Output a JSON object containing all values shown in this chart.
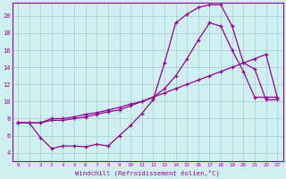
{
  "xlabel": "Windchill (Refroidissement éolien,°C)",
  "line_color": "#990099",
  "bg_color": "#cff0f0",
  "grid_color": "#aad4d4",
  "xlim": [
    -0.5,
    23.5
  ],
  "ylim": [
    3.0,
    21.5
  ],
  "xticks": [
    0,
    1,
    2,
    3,
    4,
    5,
    6,
    7,
    8,
    9,
    10,
    11,
    12,
    13,
    14,
    15,
    16,
    17,
    18,
    19,
    20,
    21,
    22,
    23
  ],
  "yticks": [
    4,
    6,
    8,
    10,
    12,
    14,
    16,
    18,
    20
  ],
  "line1_x": [
    0,
    1,
    2,
    3,
    4,
    5,
    6,
    7,
    8,
    9,
    10,
    11,
    12,
    13,
    14,
    15,
    16,
    17,
    18,
    19,
    20,
    21,
    22,
    23
  ],
  "line1_y": [
    7.5,
    7.5,
    5.8,
    4.5,
    4.8,
    4.8,
    4.7,
    5.0,
    4.8,
    6.0,
    7.2,
    8.6,
    10.2,
    14.5,
    19.2,
    20.2,
    21.0,
    21.3,
    21.3,
    18.8,
    14.5,
    13.8,
    10.2,
    10.2
  ],
  "line2_x": [
    0,
    1,
    2,
    3,
    4,
    5,
    6,
    7,
    8,
    9,
    10,
    11,
    12,
    13,
    14,
    15,
    16,
    17,
    18,
    19,
    20,
    21,
    22,
    23
  ],
  "line2_y": [
    7.5,
    7.5,
    7.5,
    7.8,
    7.8,
    8.0,
    8.2,
    8.5,
    8.8,
    9.0,
    9.5,
    10.0,
    10.5,
    11.5,
    13.0,
    15.0,
    17.2,
    19.2,
    18.8,
    16.0,
    13.5,
    10.5,
    10.5,
    10.5
  ],
  "line3_x": [
    0,
    2,
    3,
    4,
    5,
    6,
    7,
    8,
    9,
    10,
    11,
    12,
    13,
    14,
    15,
    16,
    17,
    18,
    19,
    20,
    21,
    22,
    23
  ],
  "line3_y": [
    7.5,
    7.5,
    8.0,
    8.0,
    8.2,
    8.5,
    8.7,
    9.0,
    9.3,
    9.7,
    10.0,
    10.5,
    11.0,
    11.5,
    12.0,
    12.5,
    13.0,
    13.5,
    14.0,
    14.5,
    15.0,
    15.5,
    10.5
  ]
}
